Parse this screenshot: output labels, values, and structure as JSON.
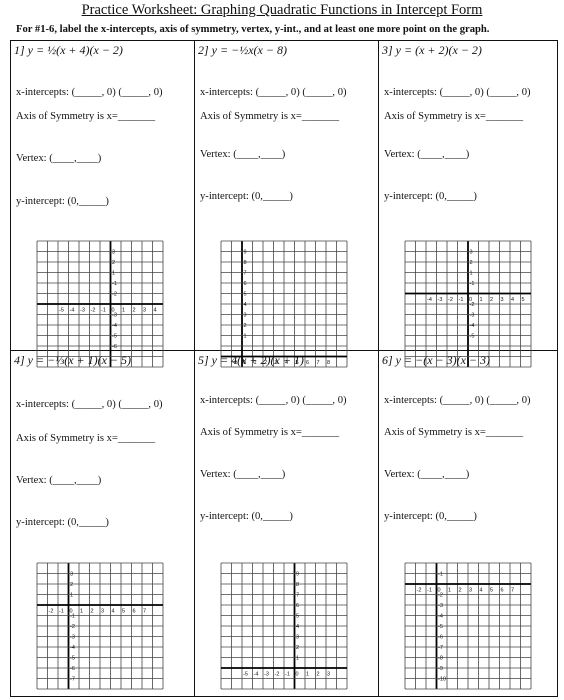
{
  "title": "Practice Worksheet: Graphing Quadratic Functions in Intercept Form",
  "instructions": "For #1-6, label the x-intercepts, axis of symmetry, vertex, y-int., and at least one more point on the graph.",
  "labels": {
    "x_intercepts": "x-intercepts: (_____, 0) (_____, 0)",
    "axis": "Axis of Symmetry is x=_______",
    "vertex": "Vertex: (____,____)",
    "y_intercept": "y-intercept: (0,_____)"
  },
  "problems": [
    {
      "equation": "1] y = ½(x + 4)(x − 2)",
      "grid": {
        "x_ticks": [
          "-5",
          "-4",
          "-3",
          "-2",
          "-1",
          "0",
          "1",
          "2",
          "3",
          "4"
        ],
        "y_ticks": [
          "3",
          "2",
          "1",
          "-1",
          "-2",
          "-3",
          "-4",
          "-5",
          "-6"
        ]
      }
    },
    {
      "equation": "2] y = −½x(x − 8)",
      "grid": {
        "x_ticks": [
          "-1",
          "0",
          "1",
          "2",
          "3",
          "4",
          "5",
          "6",
          "7",
          "8"
        ],
        "y_ticks": [
          "9",
          "8",
          "7",
          "6",
          "5",
          "4",
          "3",
          "2",
          "1"
        ]
      }
    },
    {
      "equation": "3] y = (x + 2)(x − 2)",
      "grid": {
        "x_ticks": [
          "-4",
          "-3",
          "-2",
          "-1",
          "0",
          "1",
          "2",
          "3",
          "4",
          "5"
        ],
        "y_ticks": [
          "3",
          "2",
          "1",
          "-1",
          "-2",
          "-3",
          "-4",
          "-5"
        ]
      }
    },
    {
      "equation": "4] y = −⅓(x + 1)(x − 5)",
      "grid": {
        "x_ticks": [
          "-2",
          "-1",
          "0",
          "1",
          "2",
          "3",
          "4",
          "5",
          "6",
          "7"
        ],
        "y_ticks": [
          "3",
          "2",
          "1",
          "-1",
          "-2",
          "-3",
          "-4",
          "-5",
          "-6",
          "-7"
        ]
      }
    },
    {
      "equation": "5] y = 4(x + 2)(x + 1)",
      "grid": {
        "x_ticks": [
          "-5",
          "-4",
          "-3",
          "-2",
          "-1",
          "0",
          "1",
          "2",
          "3"
        ],
        "y_ticks": [
          "9",
          "8",
          "7",
          "6",
          "5",
          "4",
          "3",
          "2",
          "1"
        ]
      }
    },
    {
      "equation": "6] y = −(x − 3)(x − 3)",
      "grid": {
        "x_ticks": [
          "-2",
          "-1",
          "0",
          "1",
          "2",
          "3",
          "4",
          "5",
          "6",
          "7"
        ],
        "y_ticks": [
          "-1",
          "-2",
          "-3",
          "-4",
          "-5",
          "-6",
          "-7",
          "-8",
          "-9",
          "-10"
        ]
      }
    }
  ]
}
